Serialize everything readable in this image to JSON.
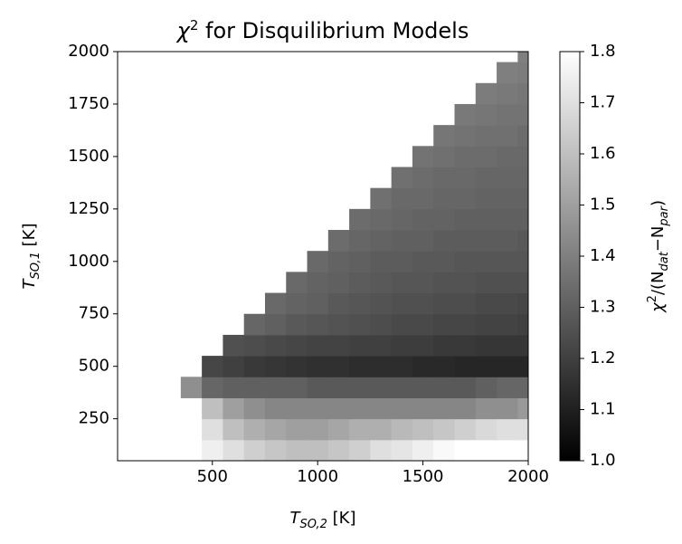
{
  "chart_data": {
    "type": "heatmap",
    "title": [
      "χ",
      "2",
      " for Disquilibrium Models"
    ],
    "xlabel": [
      "T",
      "SO,2",
      " [K]"
    ],
    "ylabel": [
      "T",
      "SO,1",
      " [K]"
    ],
    "colorbar_label": [
      "χ",
      "2",
      "/(N",
      "dat",
      "−N",
      "par",
      ")"
    ],
    "colormap": "gray",
    "xlim": [
      50,
      2000
    ],
    "ylim": [
      50,
      2000
    ],
    "xticks": [
      500,
      1000,
      1500,
      2000
    ],
    "yticks": [
      250,
      500,
      750,
      1000,
      1250,
      1500,
      1750,
      2000
    ],
    "clim": [
      1.0,
      1.8
    ],
    "cticks": [
      {
        "value": 1.0,
        "label": "1.0"
      },
      1.1,
      1.2,
      1.3,
      1.4,
      1.5,
      1.6,
      1.7,
      1.8
    ],
    "x_edges": [
      50,
      150,
      250,
      350,
      450,
      550,
      650,
      750,
      850,
      950,
      1050,
      1150,
      1250,
      1350,
      1450,
      1550,
      1650,
      1750,
      1850,
      1950,
      2000
    ],
    "y_edges": [
      50,
      150,
      250,
      350,
      450,
      550,
      650,
      750,
      850,
      950,
      1050,
      1150,
      1250,
      1350,
      1450,
      1550,
      1650,
      1750,
      1850,
      1950,
      2000
    ],
    "z": [
      [
        null,
        null,
        null,
        null,
        1.75,
        1.7,
        1.65,
        1.62,
        1.6,
        1.6,
        1.62,
        1.65,
        1.7,
        1.72,
        1.75,
        1.78,
        1.8,
        1.8,
        1.8,
        1.8
      ],
      [
        null,
        null,
        null,
        null,
        1.7,
        1.6,
        1.55,
        1.52,
        1.5,
        1.5,
        1.52,
        1.55,
        1.55,
        1.58,
        1.6,
        1.62,
        1.65,
        1.68,
        1.7,
        1.7
      ],
      [
        null,
        null,
        null,
        null,
        1.6,
        1.5,
        1.45,
        1.42,
        1.42,
        1.42,
        1.42,
        1.42,
        1.42,
        1.42,
        1.42,
        1.42,
        1.42,
        1.45,
        1.45,
        1.48
      ],
      [
        null,
        null,
        null,
        1.45,
        1.32,
        1.3,
        1.3,
        1.3,
        1.3,
        1.28,
        1.28,
        1.28,
        1.28,
        1.28,
        1.28,
        1.28,
        1.28,
        1.3,
        1.32,
        1.32
      ],
      [
        null,
        null,
        null,
        null,
        1.22,
        1.2,
        1.18,
        1.17,
        1.16,
        1.15,
        1.15,
        1.14,
        1.14,
        1.14,
        1.13,
        1.13,
        1.12,
        1.12,
        1.12,
        1.12
      ],
      [
        null,
        null,
        null,
        null,
        null,
        1.25,
        1.24,
        1.23,
        1.22,
        1.21,
        1.21,
        1.2,
        1.2,
        1.19,
        1.19,
        1.18,
        1.18,
        1.17,
        1.17,
        1.17
      ],
      [
        null,
        null,
        null,
        null,
        null,
        null,
        1.32,
        1.3,
        1.28,
        1.27,
        1.26,
        1.25,
        1.24,
        1.23,
        1.23,
        1.22,
        1.22,
        1.21,
        1.21,
        1.2
      ],
      [
        null,
        null,
        null,
        null,
        null,
        null,
        null,
        1.33,
        1.31,
        1.3,
        1.28,
        1.27,
        1.26,
        1.25,
        1.25,
        1.24,
        1.24,
        1.23,
        1.23,
        1.22
      ],
      [
        null,
        null,
        null,
        null,
        null,
        null,
        null,
        null,
        1.33,
        1.31,
        1.3,
        1.29,
        1.28,
        1.27,
        1.27,
        1.26,
        1.26,
        1.25,
        1.25,
        1.25
      ],
      [
        null,
        null,
        null,
        null,
        null,
        null,
        null,
        null,
        null,
        1.33,
        1.31,
        1.3,
        1.29,
        1.29,
        1.28,
        1.28,
        1.27,
        1.27,
        1.27,
        1.27
      ],
      [
        null,
        null,
        null,
        null,
        null,
        null,
        null,
        null,
        null,
        null,
        1.34,
        1.32,
        1.31,
        1.3,
        1.3,
        1.29,
        1.29,
        1.29,
        1.29,
        1.28
      ],
      [
        null,
        null,
        null,
        null,
        null,
        null,
        null,
        null,
        null,
        null,
        null,
        1.34,
        1.33,
        1.32,
        1.31,
        1.31,
        1.3,
        1.3,
        1.3,
        1.3
      ],
      [
        null,
        null,
        null,
        null,
        null,
        null,
        null,
        null,
        null,
        null,
        null,
        null,
        1.35,
        1.33,
        1.33,
        1.32,
        1.32,
        1.31,
        1.31,
        1.31
      ],
      [
        null,
        null,
        null,
        null,
        null,
        null,
        null,
        null,
        null,
        null,
        null,
        null,
        null,
        1.35,
        1.34,
        1.33,
        1.33,
        1.32,
        1.32,
        1.32
      ],
      [
        null,
        null,
        null,
        null,
        null,
        null,
        null,
        null,
        null,
        null,
        null,
        null,
        null,
        null,
        1.36,
        1.35,
        1.34,
        1.34,
        1.33,
        1.33
      ],
      [
        null,
        null,
        null,
        null,
        null,
        null,
        null,
        null,
        null,
        null,
        null,
        null,
        null,
        null,
        null,
        1.37,
        1.36,
        1.35,
        1.35,
        1.34
      ],
      [
        null,
        null,
        null,
        null,
        null,
        null,
        null,
        null,
        null,
        null,
        null,
        null,
        null,
        null,
        null,
        null,
        1.38,
        1.37,
        1.36,
        1.36
      ],
      [
        null,
        null,
        null,
        null,
        null,
        null,
        null,
        null,
        null,
        null,
        null,
        null,
        null,
        null,
        null,
        null,
        null,
        1.39,
        1.38,
        1.37
      ],
      [
        null,
        null,
        null,
        null,
        null,
        null,
        null,
        null,
        null,
        null,
        null,
        null,
        null,
        null,
        null,
        null,
        null,
        null,
        1.4,
        1.39
      ],
      [
        null,
        null,
        null,
        null,
        null,
        null,
        null,
        null,
        null,
        null,
        null,
        null,
        null,
        null,
        null,
        null,
        null,
        null,
        null,
        1.4
      ]
    ]
  }
}
